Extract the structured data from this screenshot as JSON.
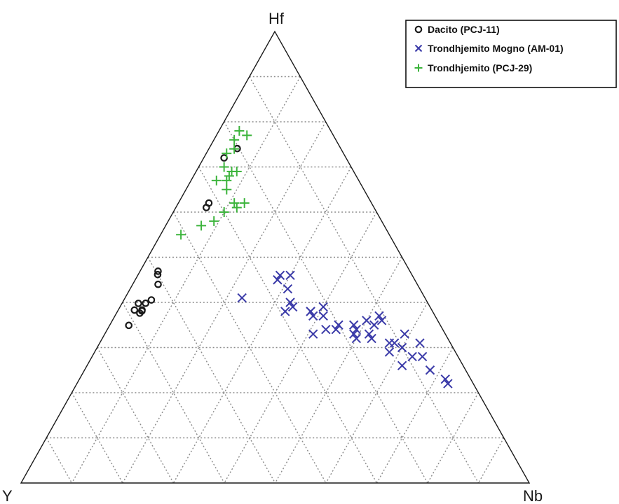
{
  "chart_data": {
    "type": "scatter",
    "subtype": "ternary",
    "title": "",
    "vertices": {
      "top": "Hf",
      "left": "Y",
      "right": "Nb"
    },
    "grid": true,
    "grid_divisions": 10,
    "legend_position": "top-right",
    "series": [
      {
        "name": "Dacito (PCJ-11)",
        "marker": "circle",
        "color": "#1a1a1a",
        "points": [
          {
            "Hf": 0.62,
            "Y": 0.32,
            "Nb": 0.06
          },
          {
            "Hf": 0.61,
            "Y": 0.33,
            "Nb": 0.06
          },
          {
            "Hf": 0.72,
            "Y": 0.24,
            "Nb": 0.04
          },
          {
            "Hf": 0.8,
            "Y": 0.22,
            "Nb": 0.06
          },
          {
            "Hf": 0.4,
            "Y": 0.6,
            "Nb": 0.05
          },
          {
            "Hf": 0.44,
            "Y": 0.51,
            "Nb": 0.05
          },
          {
            "Hf": 0.48,
            "Y": 0.52,
            "Nb": 0.04
          },
          {
            "Hf": 0.41,
            "Y": 0.63,
            "Nb": 0.05
          },
          {
            "Hf": 0.43,
            "Y": 0.6,
            "Nb": 0.05
          },
          {
            "Hf": 0.41,
            "Y": 0.61,
            "Nb": 0.05
          },
          {
            "Hf": 0.37,
            "Y": 0.65,
            "Nb": 0.04
          },
          {
            "Hf": 0.45,
            "Y": 0.6,
            "Nb": 0.06
          },
          {
            "Hf": 0.53,
            "Y": 0.56,
            "Nb": 0.04
          },
          {
            "Hf": 0.36,
            "Y": 0.55,
            "Nb": 0.03
          },
          {
            "Hf": 0.37,
            "Y": 0.53,
            "Nb": 0.03
          }
        ]
      },
      {
        "name": "Trondhjemito Mogno (AM-01)",
        "marker": "x",
        "color": "#3a3aa8",
        "points": [
          {
            "Hf": 0.23,
            "Y": 0.05,
            "Nb": 0.72
          },
          {
            "Hf": 0.25,
            "Y": 0.07,
            "Nb": 0.68
          },
          {
            "Hf": 0.22,
            "Y": 0.05,
            "Nb": 0.73
          },
          {
            "Hf": 0.26,
            "Y": 0.12,
            "Nb": 0.62
          },
          {
            "Hf": 0.28,
            "Y": 0.09,
            "Nb": 0.63
          },
          {
            "Hf": 0.3,
            "Y": 0.1,
            "Nb": 0.6
          },
          {
            "Hf": 0.31,
            "Y": 0.11,
            "Nb": 0.58
          },
          {
            "Hf": 0.29,
            "Y": 0.13,
            "Nb": 0.58
          },
          {
            "Hf": 0.28,
            "Y": 0.07,
            "Nb": 0.65
          },
          {
            "Hf": 0.31,
            "Y": 0.06,
            "Nb": 0.63
          },
          {
            "Hf": 0.31,
            "Y": 0.12,
            "Nb": 0.57
          },
          {
            "Hf": 0.33,
            "Y": 0.08,
            "Nb": 0.59
          },
          {
            "Hf": 0.33,
            "Y": 0.15,
            "Nb": 0.52
          },
          {
            "Hf": 0.35,
            "Y": 0.13,
            "Nb": 0.52
          },
          {
            "Hf": 0.36,
            "Y": 0.11,
            "Nb": 0.53
          },
          {
            "Hf": 0.36,
            "Y": 0.14,
            "Nb": 0.5
          },
          {
            "Hf": 0.35,
            "Y": 0.17,
            "Nb": 0.48
          },
          {
            "Hf": 0.35,
            "Y": 0.2,
            "Nb": 0.45
          },
          {
            "Hf": 0.37,
            "Y": 0.11,
            "Nb": 0.52
          },
          {
            "Hf": 0.32,
            "Y": 0.15,
            "Nb": 0.53
          },
          {
            "Hf": 0.34,
            "Y": 0.21,
            "Nb": 0.45
          },
          {
            "Hf": 0.33,
            "Y": 0.18,
            "Nb": 0.49
          },
          {
            "Hf": 0.34,
            "Y": 0.17,
            "Nb": 0.49
          },
          {
            "Hf": 0.32,
            "Y": 0.18,
            "Nb": 0.5
          },
          {
            "Hf": 0.33,
            "Y": 0.26,
            "Nb": 0.41
          },
          {
            "Hf": 0.34,
            "Y": 0.23,
            "Nb": 0.43
          },
          {
            "Hf": 0.38,
            "Y": 0.24,
            "Nb": 0.38
          },
          {
            "Hf": 0.37,
            "Y": 0.24,
            "Nb": 0.39
          },
          {
            "Hf": 0.38,
            "Y": 0.24,
            "Nb": 0.38
          },
          {
            "Hf": 0.37,
            "Y": 0.22,
            "Nb": 0.41
          },
          {
            "Hf": 0.39,
            "Y": 0.21,
            "Nb": 0.4
          },
          {
            "Hf": 0.38,
            "Y": 0.29,
            "Nb": 0.33
          },
          {
            "Hf": 0.39,
            "Y": 0.27,
            "Nb": 0.34
          },
          {
            "Hf": 0.4,
            "Y": 0.27,
            "Nb": 0.33
          },
          {
            "Hf": 0.43,
            "Y": 0.26,
            "Nb": 0.31
          },
          {
            "Hf": 0.45,
            "Y": 0.27,
            "Nb": 0.28
          },
          {
            "Hf": 0.46,
            "Y": 0.24,
            "Nb": 0.3
          },
          {
            "Hf": 0.46,
            "Y": 0.26,
            "Nb": 0.28
          },
          {
            "Hf": 0.41,
            "Y": 0.36,
            "Nb": 0.23
          }
        ]
      },
      {
        "name": "Trondhjemito (PCJ-29)",
        "marker": "plus",
        "color": "#3cb43c",
        "points": [
          {
            "Hf": 0.55,
            "Y": 0.41,
            "Nb": 0.04
          },
          {
            "Hf": 0.57,
            "Y": 0.36,
            "Nb": 0.07
          },
          {
            "Hf": 0.58,
            "Y": 0.33,
            "Nb": 0.09
          },
          {
            "Hf": 0.6,
            "Y": 0.3,
            "Nb": 0.1
          },
          {
            "Hf": 0.61,
            "Y": 0.27,
            "Nb": 0.12
          },
          {
            "Hf": 0.62,
            "Y": 0.27,
            "Nb": 0.11
          },
          {
            "Hf": 0.62,
            "Y": 0.25,
            "Nb": 0.13
          },
          {
            "Hf": 0.65,
            "Y": 0.27,
            "Nb": 0.08
          },
          {
            "Hf": 0.67,
            "Y": 0.28,
            "Nb": 0.05
          },
          {
            "Hf": 0.67,
            "Y": 0.26,
            "Nb": 0.07
          },
          {
            "Hf": 0.68,
            "Y": 0.25,
            "Nb": 0.07
          },
          {
            "Hf": 0.69,
            "Y": 0.23,
            "Nb": 0.08
          },
          {
            "Hf": 0.69,
            "Y": 0.24,
            "Nb": 0.07
          },
          {
            "Hf": 0.7,
            "Y": 0.25,
            "Nb": 0.05
          },
          {
            "Hf": 0.73,
            "Y": 0.23,
            "Nb": 0.04
          },
          {
            "Hf": 0.74,
            "Y": 0.21,
            "Nb": 0.05
          },
          {
            "Hf": 0.76,
            "Y": 0.2,
            "Nb": 0.04
          },
          {
            "Hf": 0.77,
            "Y": 0.17,
            "Nb": 0.06
          },
          {
            "Hf": 0.78,
            "Y": 0.18,
            "Nb": 0.04
          }
        ]
      }
    ]
  }
}
